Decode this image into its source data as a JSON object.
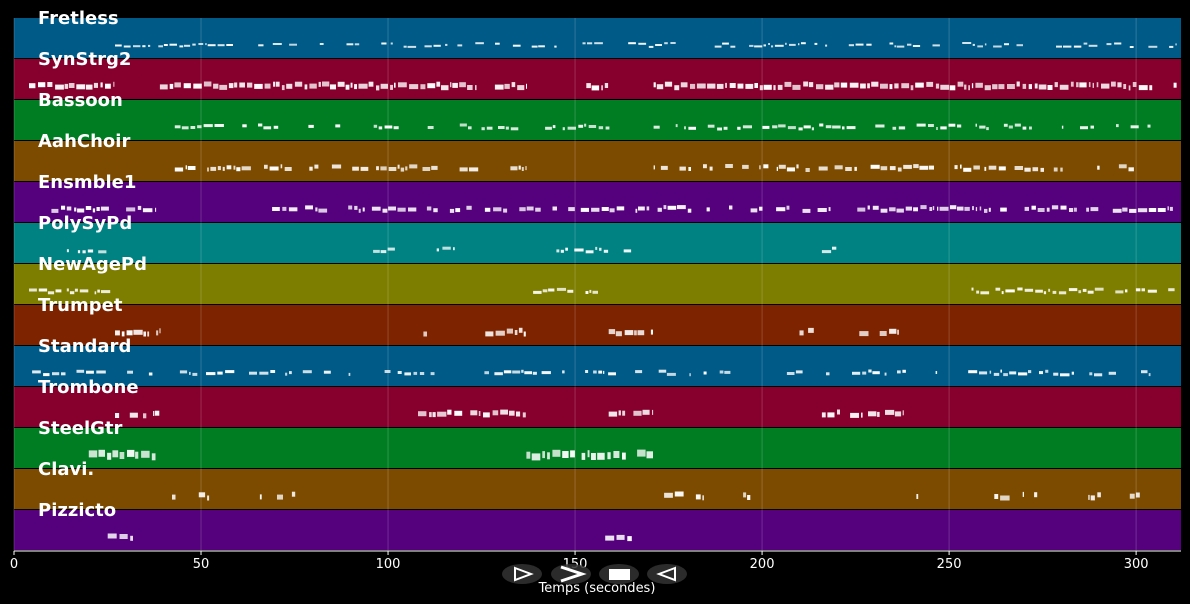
{
  "chart_data": {
    "type": "piano-roll",
    "xlabel": "Temps (secondes)",
    "xlim": [
      0,
      312
    ],
    "xticks": [
      0,
      50,
      100,
      150,
      200,
      250,
      300
    ],
    "grid": true,
    "background": "#000000",
    "note_color": "#ffffff",
    "tracks": [
      {
        "name": "Fretless",
        "color": "#005a87",
        "segments": [
          [
            27,
            311
          ]
        ],
        "density": 0.55,
        "thickness": 2
      },
      {
        "name": "SynStrg2",
        "color": "#87002d",
        "segments": [
          [
            4,
            27
          ],
          [
            39,
            137
          ],
          [
            153,
            159
          ],
          [
            171,
            311
          ]
        ],
        "density": 0.95,
        "thickness": 5
      },
      {
        "name": "Bassoon",
        "color": "#007d23",
        "segments": [
          [
            43,
            135
          ],
          [
            142,
            160
          ],
          [
            171,
            304
          ]
        ],
        "density": 0.5,
        "thickness": 3
      },
      {
        "name": "AahChoir",
        "color": "#7d4b00",
        "segments": [
          [
            43,
            137
          ],
          [
            171,
            304
          ]
        ],
        "density": 0.7,
        "thickness": 4
      },
      {
        "name": "Ensmble1",
        "color": "#55007d",
        "segments": [
          [
            10,
            38
          ],
          [
            69,
            170
          ],
          [
            171,
            311
          ]
        ],
        "density": 0.75,
        "thickness": 4
      },
      {
        "name": "PolySyPd",
        "color": "#008282",
        "segments": [
          [
            12,
            26
          ],
          [
            96,
            102
          ],
          [
            113,
            118
          ],
          [
            145,
            159
          ],
          [
            163,
            168
          ],
          [
            198,
            204
          ],
          [
            215,
            220
          ]
        ],
        "density": 0.5,
        "thickness": 3
      },
      {
        "name": "NewAgePd",
        "color": "#7d7d00",
        "segments": [
          [
            4,
            26
          ],
          [
            137,
            159
          ],
          [
            256,
            311
          ]
        ],
        "density": 0.8,
        "thickness": 3
      },
      {
        "name": "Trumpet",
        "color": "#7d2300",
        "segments": [
          [
            27,
            39
          ],
          [
            108,
            112
          ],
          [
            126,
            137
          ],
          [
            159,
            171
          ],
          [
            210,
            214
          ],
          [
            226,
            238
          ]
        ],
        "density": 0.85,
        "thickness": 5
      },
      {
        "name": "Standard",
        "color": "#005a87",
        "segments": [
          [
            4,
            304
          ]
        ],
        "density": 0.5,
        "thickness": 3
      },
      {
        "name": "Trombone",
        "color": "#87002d",
        "segments": [
          [
            27,
            39
          ],
          [
            108,
            120
          ],
          [
            122,
            137
          ],
          [
            159,
            171
          ],
          [
            210,
            214
          ],
          [
            216,
            238
          ]
        ],
        "density": 0.75,
        "thickness": 5
      },
      {
        "name": "SteelGtr",
        "color": "#007d23",
        "segments": [
          [
            20,
            38
          ],
          [
            137,
            171
          ]
        ],
        "density": 0.95,
        "thickness": 7
      },
      {
        "name": "Clavi.",
        "color": "#7d4b00",
        "segments": [
          [
            40,
            96
          ],
          [
            171,
            197
          ],
          [
            238,
            304
          ]
        ],
        "density": 0.3,
        "thickness": 5
      },
      {
        "name": "Pizzicto",
        "color": "#55007d",
        "segments": [
          [
            20,
            37
          ],
          [
            153,
            171
          ]
        ],
        "density": 0.35,
        "thickness": 5
      }
    ]
  },
  "controls": [
    {
      "name": "play-button",
      "glyph": "play-outline-icon"
    },
    {
      "name": "fast-forward-button",
      "glyph": "chevron-right-icon"
    },
    {
      "name": "stop-button",
      "glyph": "stop-icon"
    },
    {
      "name": "rewind-button",
      "glyph": "rewind-outline-icon"
    }
  ]
}
